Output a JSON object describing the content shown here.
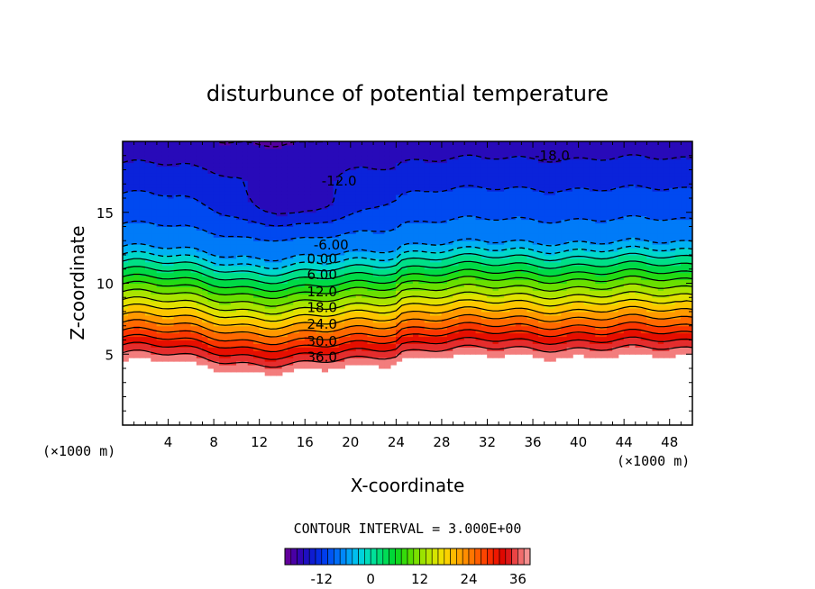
{
  "chart_data": {
    "type": "contour",
    "title": "disturbunce of potential temperature",
    "xlabel": "X-coordinate",
    "ylabel": "Z-coordinate",
    "x_unit": "(×1000 m)",
    "y_unit": "(×1000 m)",
    "xlim": [
      0,
      50
    ],
    "ylim": [
      0,
      20
    ],
    "x_ticks": [
      4,
      8,
      12,
      16,
      20,
      24,
      28,
      32,
      36,
      40,
      44,
      48
    ],
    "y_ticks": [
      5,
      10,
      15
    ],
    "contour_interval_label": "CONTOUR INTERVAL = 3.000E+00",
    "contour_labels": [
      {
        "text": "-18.0",
        "x": 37.7,
        "z": 19.0
      },
      {
        "text": "-12.0",
        "x": 19.0,
        "z": 17.2
      },
      {
        "text": "-6.00",
        "x": 18.3,
        "z": 12.7
      },
      {
        "text": "0.00",
        "x": 17.5,
        "z": 11.7
      },
      {
        "text": "6.00",
        "x": 17.5,
        "z": 10.6
      },
      {
        "text": "12.0",
        "x": 17.5,
        "z": 9.4
      },
      {
        "text": "18.0",
        "x": 17.5,
        "z": 8.3
      },
      {
        "text": "24.0",
        "x": 17.5,
        "z": 7.1
      },
      {
        "text": "30.0",
        "x": 17.5,
        "z": 5.9
      },
      {
        "text": "36.0",
        "x": 17.5,
        "z": 4.8
      }
    ],
    "colorbar": {
      "min": -21,
      "max": 39,
      "ticks": [
        -12,
        0,
        12,
        24,
        36
      ]
    },
    "value_range": [
      -21,
      39
    ]
  }
}
